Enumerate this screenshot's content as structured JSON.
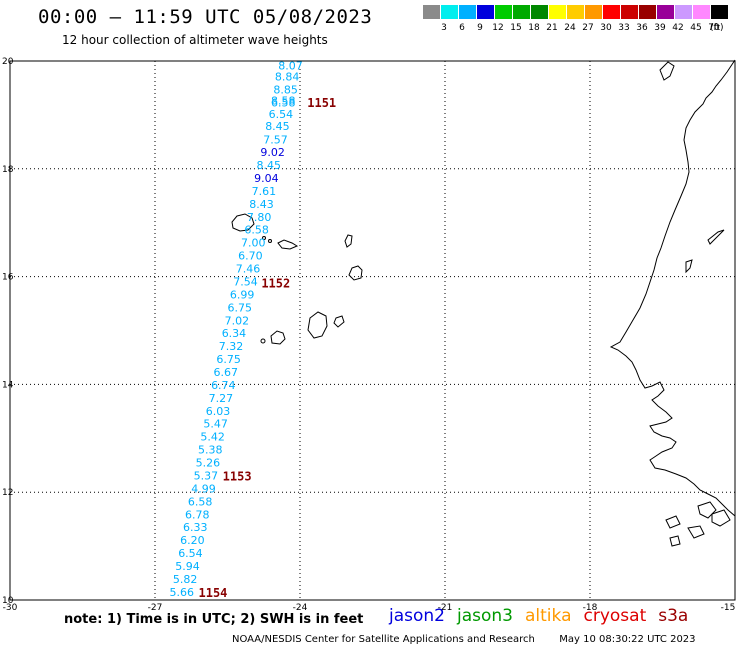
{
  "header": {
    "title": "00:00 – 11:59 UTC 05/08/2023",
    "subtitle": "12 hour collection of altimeter wave heights"
  },
  "colorbar": {
    "colors": [
      "#8a8a8a",
      "#00eeee",
      "#00b0ff",
      "#0000dd",
      "#00cc00",
      "#00aa00",
      "#008800",
      "#ffff00",
      "#ffcc00",
      "#ff9900",
      "#ff0000",
      "#cc0000",
      "#990000",
      "#990099",
      "#cc99ff",
      "#ff88ff",
      "#000000"
    ],
    "labels": [
      "3",
      "6",
      "9",
      "12",
      "15",
      "18",
      "21",
      "24",
      "27",
      "30",
      "33",
      "36",
      "39",
      "42",
      "45",
      "70"
    ],
    "unit": "(ft)"
  },
  "map": {
    "y_ticks": [
      "20",
      "18",
      "16",
      "14",
      "12",
      "10"
    ],
    "x_ticks": [
      "-30",
      "-27",
      "-24",
      "-21",
      "-18",
      "-15"
    ],
    "lat_range": [
      10,
      20
    ],
    "lon_range": [
      -30,
      -15
    ],
    "gridlines": "dotted"
  },
  "wave_heights": [
    {
      "v": "8.07",
      "lat": 19.92,
      "lon": -24.45,
      "c": "#00b0ff"
    },
    {
      "v": "8.84",
      "lat": 19.71,
      "lon": -24.52,
      "c": "#00b0ff"
    },
    {
      "v": "8.85",
      "lat": 19.47,
      "lon": -24.55,
      "c": "#00b0ff"
    },
    {
      "v": "8.58",
      "lat": 19.27,
      "lon": -24.6,
      "c": "#00b0ff"
    },
    {
      "v": "6.58",
      "lat": 19.23,
      "lon": -24.6,
      "c": "#00b0ff"
    },
    {
      "v": "6.54",
      "lat": 19.02,
      "lon": -24.65,
      "c": "#00b0ff"
    },
    {
      "v": "8.45",
      "lat": 18.79,
      "lon": -24.72,
      "c": "#00b0ff"
    },
    {
      "v": "7.57",
      "lat": 18.54,
      "lon": -24.76,
      "c": "#00b0ff"
    },
    {
      "v": "9.02",
      "lat": 18.31,
      "lon": -24.82,
      "c": "#0000dd"
    },
    {
      "v": "8.45",
      "lat": 18.07,
      "lon": -24.9,
      "c": "#00b0ff"
    },
    {
      "v": "9.04",
      "lat": 17.83,
      "lon": -24.95,
      "c": "#0000dd"
    },
    {
      "v": "7.61",
      "lat": 17.59,
      "lon": -25.0,
      "c": "#00b0ff"
    },
    {
      "v": "8.43",
      "lat": 17.35,
      "lon": -25.05,
      "c": "#00b0ff"
    },
    {
      "v": "7.80",
      "lat": 17.11,
      "lon": -25.1,
      "c": "#00b0ff"
    },
    {
      "v": "6.58",
      "lat": 16.87,
      "lon": -25.15,
      "c": "#00b0ff"
    },
    {
      "v": "7.00",
      "lat": 16.63,
      "lon": -25.22,
      "c": "#00b0ff"
    },
    {
      "v": "6.70",
      "lat": 16.39,
      "lon": -25.28,
      "c": "#00b0ff"
    },
    {
      "v": "7.46",
      "lat": 16.15,
      "lon": -25.33,
      "c": "#00b0ff"
    },
    {
      "v": "7.54",
      "lat": 15.91,
      "lon": -25.38,
      "c": "#00b0ff"
    },
    {
      "v": "6.99",
      "lat": 15.67,
      "lon": -25.45,
      "c": "#00b0ff"
    },
    {
      "v": "6.75",
      "lat": 15.43,
      "lon": -25.5,
      "c": "#00b0ff"
    },
    {
      "v": "7.02",
      "lat": 15.19,
      "lon": -25.56,
      "c": "#00b0ff"
    },
    {
      "v": "6.34",
      "lat": 14.95,
      "lon": -25.62,
      "c": "#00b0ff"
    },
    {
      "v": "7.32",
      "lat": 14.71,
      "lon": -25.68,
      "c": "#00b0ff"
    },
    {
      "v": "6.75",
      "lat": 14.47,
      "lon": -25.73,
      "c": "#00b0ff"
    },
    {
      "v": "6.67",
      "lat": 14.23,
      "lon": -25.79,
      "c": "#00b0ff"
    },
    {
      "v": "6.74",
      "lat": 13.99,
      "lon": -25.84,
      "c": "#00b0ff"
    },
    {
      "v": "7.27",
      "lat": 13.75,
      "lon": -25.89,
      "c": "#00b0ff"
    },
    {
      "v": "6.03",
      "lat": 13.51,
      "lon": -25.95,
      "c": "#00b0ff"
    },
    {
      "v": "5.47",
      "lat": 13.27,
      "lon": -26.0,
      "c": "#00b0ff"
    },
    {
      "v": "5.42",
      "lat": 13.03,
      "lon": -26.06,
      "c": "#00b0ff"
    },
    {
      "v": "5.38",
      "lat": 12.79,
      "lon": -26.11,
      "c": "#00b0ff"
    },
    {
      "v": "5.26",
      "lat": 12.55,
      "lon": -26.16,
      "c": "#00b0ff"
    },
    {
      "v": "5.37",
      "lat": 12.31,
      "lon": -26.2,
      "c": "#00b0ff"
    },
    {
      "v": "4.99",
      "lat": 12.07,
      "lon": -26.25,
      "c": "#00b0ff"
    },
    {
      "v": "6.58",
      "lat": 11.83,
      "lon": -26.32,
      "c": "#00b0ff"
    },
    {
      "v": "6.78",
      "lat": 11.59,
      "lon": -26.38,
      "c": "#00b0ff"
    },
    {
      "v": "6.33",
      "lat": 11.35,
      "lon": -26.42,
      "c": "#00b0ff"
    },
    {
      "v": "6.20",
      "lat": 11.11,
      "lon": -26.48,
      "c": "#00b0ff"
    },
    {
      "v": "6.54",
      "lat": 10.87,
      "lon": -26.52,
      "c": "#00b0ff"
    },
    {
      "v": "5.94",
      "lat": 10.63,
      "lon": -26.58,
      "c": "#00b0ff"
    },
    {
      "v": "5.82",
      "lat": 10.39,
      "lon": -26.63,
      "c": "#00b0ff"
    },
    {
      "v": "5.66",
      "lat": 10.15,
      "lon": -26.7,
      "c": "#00b0ff"
    }
  ],
  "pass_labels": [
    {
      "text": "1151",
      "lat": 19.24,
      "lon": -23.85
    },
    {
      "text": "1152",
      "lat": 15.89,
      "lon": -24.8
    },
    {
      "text": "1153",
      "lat": 12.31,
      "lon": -25.6
    },
    {
      "text": "1154",
      "lat": 10.15,
      "lon": -26.1
    }
  ],
  "note": "note:  1) Time is in UTC;  2) SWH is in feet",
  "legend": [
    {
      "name": "jason2",
      "color": "#0000dd"
    },
    {
      "name": "jason3",
      "color": "#009900"
    },
    {
      "name": "altika",
      "color": "#ff9900"
    },
    {
      "name": "cryosat",
      "color": "#dd0000"
    },
    {
      "name": "s3a",
      "color": "#990000"
    }
  ],
  "footer": {
    "source": "NOAA/NESDIS Center for Satellite Applications and Research",
    "timestamp": "May 10 08:30:22 UTC 2023"
  }
}
